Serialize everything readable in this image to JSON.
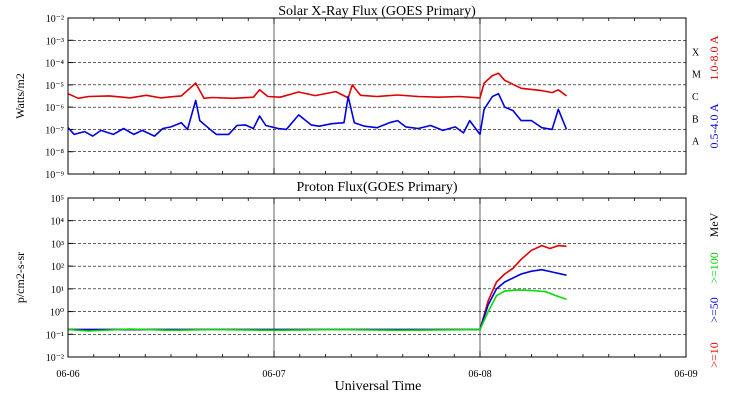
{
  "chart_data": [
    {
      "type": "line",
      "title": "Solar X-Ray Flux (GOES Primary)",
      "ylabel": "Watts/m2",
      "y_scale": "log",
      "ylim": [
        1e-09,
        0.01
      ],
      "y_ticks": [
        {
          "value": 1e-09,
          "label": "10⁻⁹"
        },
        {
          "value": 1e-08,
          "label": "10⁻⁸"
        },
        {
          "value": 1e-07,
          "label": "10⁻⁷"
        },
        {
          "value": 1e-06,
          "label": "10⁻⁶"
        },
        {
          "value": 1e-05,
          "label": "10⁻⁵"
        },
        {
          "value": 0.0001,
          "label": "10⁻⁴"
        },
        {
          "value": 0.001,
          "label": "10⁻³"
        },
        {
          "value": 0.01,
          "label": "10⁻²"
        }
      ],
      "flare_classes": [
        {
          "label": "A",
          "value": 1e-08
        },
        {
          "label": "B",
          "value": 1e-07
        },
        {
          "label": "C",
          "value": 1e-06
        },
        {
          "label": "M",
          "value": 1e-05
        },
        {
          "label": "X",
          "value": 0.0001
        }
      ],
      "right_labels": [
        {
          "text": "1.0-8.0 A",
          "color": "#e00000"
        },
        {
          "text": "0.5-4.0 A",
          "color": "#0000e0"
        }
      ],
      "x_units": "days since 06-06",
      "xlim": [
        0,
        3
      ],
      "grid": true,
      "series": [
        {
          "name": "1.0-8.0 A",
          "color": "#e00000",
          "points": [
            [
              0,
              4e-06
            ],
            [
              0.05,
              2.5e-06
            ],
            [
              0.1,
              3e-06
            ],
            [
              0.2,
              3.2e-06
            ],
            [
              0.3,
              2.6e-06
            ],
            [
              0.38,
              3.4e-06
            ],
            [
              0.45,
              2.6e-06
            ],
            [
              0.5,
              2.9e-06
            ],
            [
              0.55,
              3.2e-06
            ],
            [
              0.62,
              1.2e-05
            ],
            [
              0.66,
              2.5e-06
            ],
            [
              0.7,
              2.7e-06
            ],
            [
              0.8,
              2.5e-06
            ],
            [
              0.9,
              2.8e-06
            ],
            [
              0.93,
              6e-06
            ],
            [
              0.97,
              3e-06
            ],
            [
              1.03,
              2.8e-06
            ],
            [
              1.12,
              4.8e-06
            ],
            [
              1.2,
              3.3e-06
            ],
            [
              1.3,
              5e-06
            ],
            [
              1.36,
              2.6e-06
            ],
            [
              1.38,
              1e-05
            ],
            [
              1.42,
              3.4e-06
            ],
            [
              1.5,
              3e-06
            ],
            [
              1.6,
              3.5e-06
            ],
            [
              1.7,
              3e-06
            ],
            [
              1.8,
              2.8e-06
            ],
            [
              1.9,
              3e-06
            ],
            [
              2,
              2.6e-06
            ],
            [
              2.02,
              1.2e-05
            ],
            [
              2.06,
              2.6e-05
            ],
            [
              2.09,
              3.3e-05
            ],
            [
              2.12,
              1.6e-05
            ],
            [
              2.2,
              7e-06
            ],
            [
              2.3,
              5.5e-06
            ],
            [
              2.35,
              4.5e-06
            ],
            [
              2.38,
              6e-06
            ],
            [
              2.42,
              3.2e-06
            ]
          ]
        },
        {
          "name": "0.5-4.0 A",
          "color": "#0000e0",
          "points": [
            [
              0,
              1.2e-07
            ],
            [
              0.03,
              6e-08
            ],
            [
              0.08,
              8e-08
            ],
            [
              0.12,
              5e-08
            ],
            [
              0.16,
              9e-08
            ],
            [
              0.22,
              6e-08
            ],
            [
              0.27,
              1.1e-07
            ],
            [
              0.32,
              6e-08
            ],
            [
              0.36,
              9e-08
            ],
            [
              0.42,
              5e-08
            ],
            [
              0.46,
              1.1e-07
            ],
            [
              0.5,
              1.3e-07
            ],
            [
              0.55,
              2e-07
            ],
            [
              0.58,
              1e-07
            ],
            [
              0.62,
              2e-06
            ],
            [
              0.64,
              2.5e-07
            ],
            [
              0.68,
              1.2e-07
            ],
            [
              0.72,
              6e-08
            ],
            [
              0.78,
              6e-08
            ],
            [
              0.82,
              1.5e-07
            ],
            [
              0.86,
              1.6e-07
            ],
            [
              0.9,
              1.1e-07
            ],
            [
              0.93,
              4e-07
            ],
            [
              0.96,
              1.5e-07
            ],
            [
              1.02,
              1.1e-07
            ],
            [
              1.06,
              1e-07
            ],
            [
              1.12,
              4.5e-07
            ],
            [
              1.18,
              1.6e-07
            ],
            [
              1.22,
              1.4e-07
            ],
            [
              1.28,
              1.8e-07
            ],
            [
              1.34,
              2e-07
            ],
            [
              1.36,
              3e-06
            ],
            [
              1.39,
              2e-07
            ],
            [
              1.44,
              1.4e-07
            ],
            [
              1.5,
              1.2e-07
            ],
            [
              1.56,
              2e-07
            ],
            [
              1.6,
              2.5e-07
            ],
            [
              1.64,
              1.3e-07
            ],
            [
              1.7,
              1.1e-07
            ],
            [
              1.76,
              1.5e-07
            ],
            [
              1.82,
              9e-08
            ],
            [
              1.88,
              1.3e-07
            ],
            [
              1.92,
              7e-08
            ],
            [
              1.95,
              2.5e-07
            ],
            [
              2,
              6e-08
            ],
            [
              2.02,
              8e-07
            ],
            [
              2.06,
              3e-06
            ],
            [
              2.09,
              4e-06
            ],
            [
              2.12,
              1e-06
            ],
            [
              2.16,
              7e-07
            ],
            [
              2.2,
              2.5e-07
            ],
            [
              2.25,
              2.5e-07
            ],
            [
              2.3,
              1.2e-07
            ],
            [
              2.35,
              1e-07
            ],
            [
              2.38,
              8e-07
            ],
            [
              2.42,
              1e-07
            ]
          ]
        }
      ]
    },
    {
      "type": "line",
      "title": "Proton Flux(GOES Primary)",
      "ylabel": "p/cm2-s-sr",
      "xlabel": "Universal Time",
      "y_scale": "log",
      "ylim": [
        0.01,
        100000.0
      ],
      "y_ticks": [
        {
          "value": 0.01,
          "label": "10⁻²"
        },
        {
          "value": 0.1,
          "label": "10⁻¹"
        },
        {
          "value": 1,
          "label": "10⁰"
        },
        {
          "value": 10,
          "label": "10¹"
        },
        {
          "value": 100,
          "label": "10²"
        },
        {
          "value": 1000,
          "label": "10³"
        },
        {
          "value": 10000,
          "label": "10⁴"
        },
        {
          "value": 100000,
          "label": "10⁵"
        }
      ],
      "x_units": "days since 06-06",
      "xlim": [
        0,
        3
      ],
      "x_ticks": [
        "06-06",
        "06-07",
        "06-08",
        "06-09"
      ],
      "grid": true,
      "right_labels": [
        {
          "text": ">=10",
          "color": "#e00000"
        },
        {
          "text": ">=50",
          "color": "#0000e0"
        },
        {
          "text": ">=100",
          "color": "#00cc00"
        },
        {
          "text": "MeV",
          "color": "#000000"
        }
      ],
      "series": [
        {
          "name": ">=10",
          "color": "#e00000",
          "points": [
            [
              0,
              0.16
            ],
            [
              2.0,
              0.16
            ],
            [
              2.04,
              3
            ],
            [
              2.08,
              20
            ],
            [
              2.12,
              45
            ],
            [
              2.16,
              80
            ],
            [
              2.2,
              200
            ],
            [
              2.25,
              500
            ],
            [
              2.3,
              800
            ],
            [
              2.34,
              600
            ],
            [
              2.38,
              800
            ],
            [
              2.42,
              750
            ]
          ]
        },
        {
          "name": ">=50",
          "color": "#0000e0",
          "points": [
            [
              0,
              0.16
            ],
            [
              2.0,
              0.16
            ],
            [
              2.04,
              2
            ],
            [
              2.08,
              10
            ],
            [
              2.12,
              20
            ],
            [
              2.16,
              30
            ],
            [
              2.2,
              45
            ],
            [
              2.25,
              60
            ],
            [
              2.3,
              70
            ],
            [
              2.35,
              55
            ],
            [
              2.42,
              40
            ]
          ]
        },
        {
          "name": ">=100",
          "color": "#00dd00",
          "points": [
            [
              0,
              0.16
            ],
            [
              0.1,
              0.14
            ],
            [
              0.3,
              0.17
            ],
            [
              0.5,
              0.15
            ],
            [
              0.7,
              0.16
            ],
            [
              1.0,
              0.15
            ],
            [
              1.3,
              0.16
            ],
            [
              1.6,
              0.15
            ],
            [
              2.0,
              0.16
            ],
            [
              2.04,
              1
            ],
            [
              2.08,
              5
            ],
            [
              2.12,
              8
            ],
            [
              2.18,
              9
            ],
            [
              2.25,
              8.5
            ],
            [
              2.32,
              7.5
            ],
            [
              2.37,
              5
            ],
            [
              2.42,
              3.5
            ]
          ]
        }
      ]
    }
  ]
}
